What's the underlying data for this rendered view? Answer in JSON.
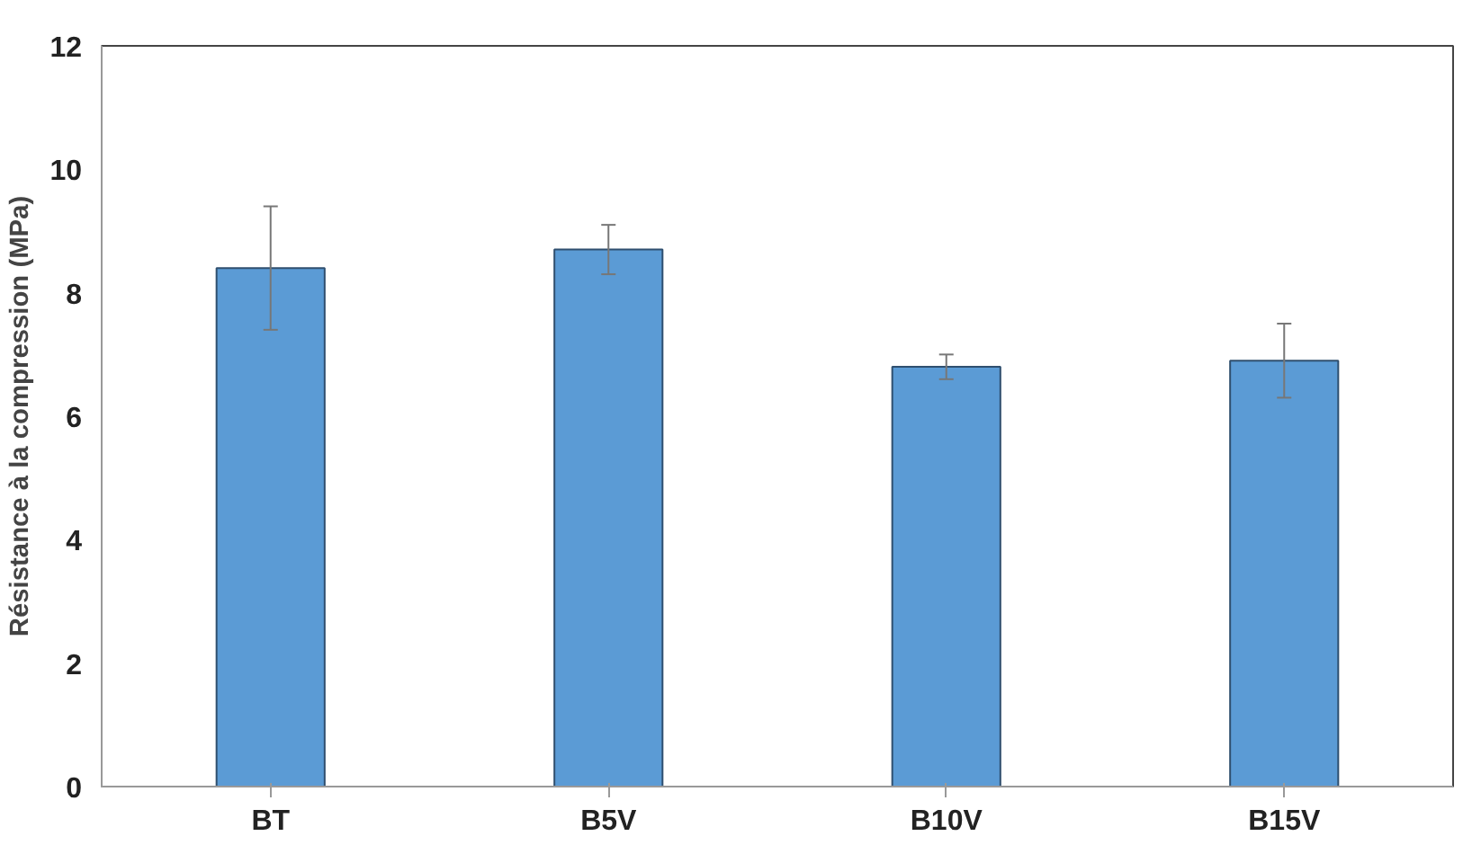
{
  "chart_data": {
    "type": "bar",
    "ylabel": "Résistance à la compression (MPa)",
    "categories": [
      "BT",
      "B5V",
      "B10V",
      "B15V"
    ],
    "values": [
      8.4,
      8.7,
      6.8,
      6.9
    ],
    "errors": [
      1.0,
      0.4,
      0.2,
      0.6
    ],
    "color": "#5b9bd5",
    "ylim": [
      0,
      12
    ],
    "yticks": [
      0,
      2,
      4,
      6,
      8,
      10,
      12
    ],
    "grid": false
  }
}
